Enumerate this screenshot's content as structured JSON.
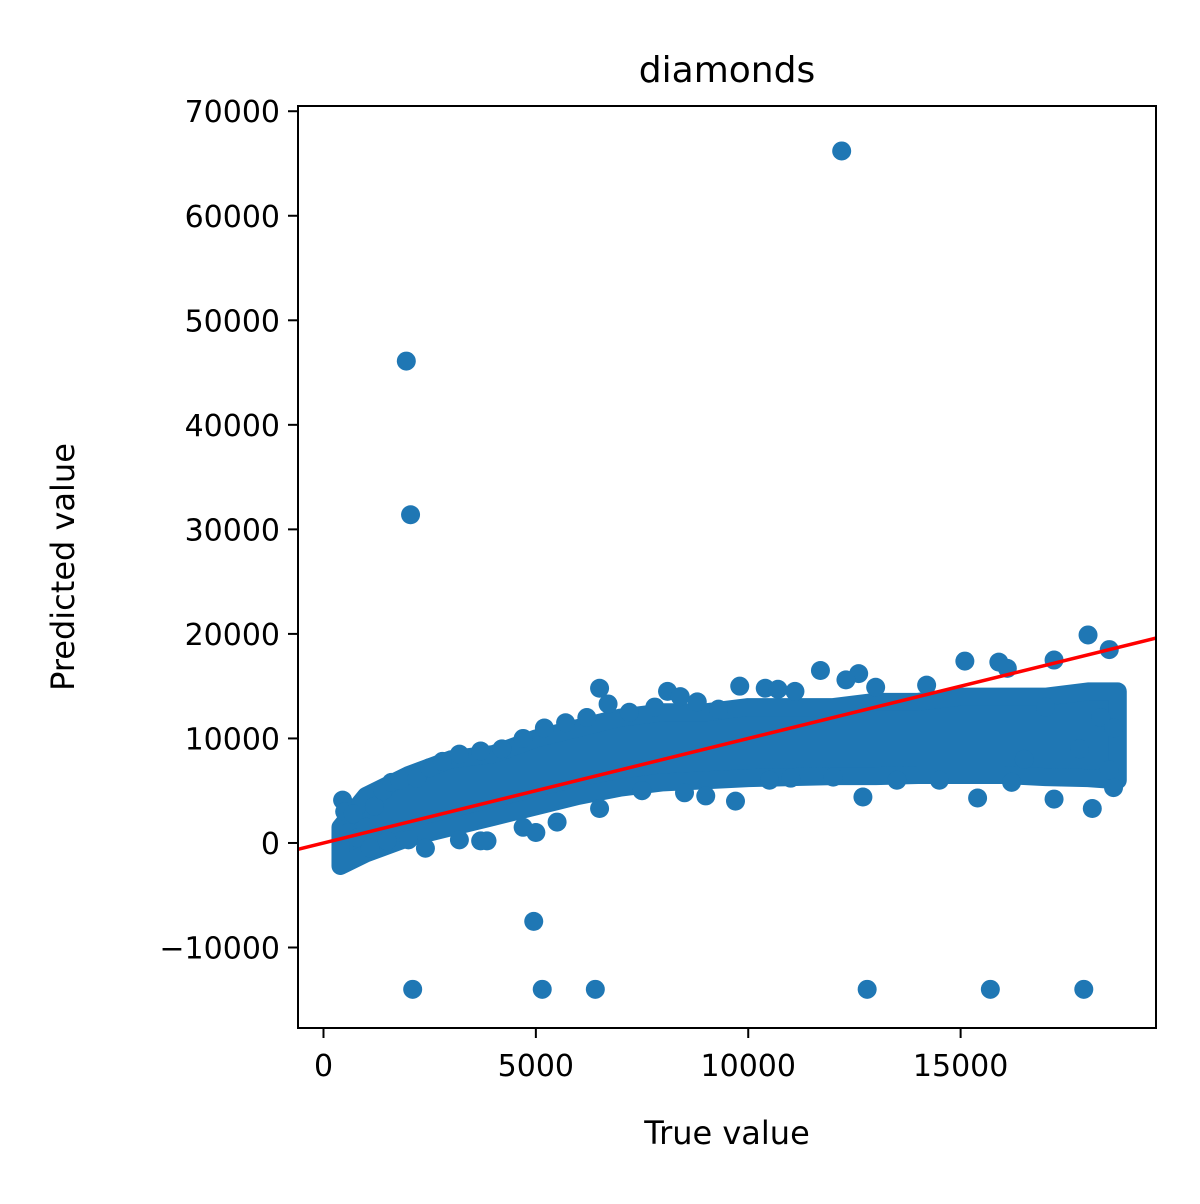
{
  "chart_data": {
    "type": "scatter",
    "title": "diamonds",
    "xlabel": "True value",
    "ylabel": "Predicted value",
    "xlim": [
      -600,
      19600
    ],
    "ylim": [
      -17700,
      70500
    ],
    "xticks": [
      0,
      5000,
      10000,
      15000
    ],
    "xtick_labels": [
      "0",
      "5000",
      "10000",
      "15000"
    ],
    "yticks": [
      -10000,
      0,
      10000,
      20000,
      30000,
      40000,
      50000,
      60000,
      70000
    ],
    "ytick_labels": [
      "−10000",
      "0",
      "10000",
      "20000",
      "30000",
      "40000",
      "50000",
      "60000",
      "70000"
    ],
    "grid": false,
    "colors": {
      "points": "#1f77b4",
      "reference_line": "#ff0000"
    },
    "reference_line": {
      "description": "y = x",
      "points": [
        [
          -600,
          -600
        ],
        [
          19600,
          19600
        ]
      ]
    },
    "bulk_band": {
      "x": [
        400,
        1000,
        2000,
        3000,
        4000,
        5000,
        6000,
        7000,
        8000,
        9000,
        10000,
        11000,
        12000,
        13000,
        14000,
        15000,
        16000,
        17000,
        18000,
        18700
      ],
      "y_low": [
        -2200,
        -1000,
        500,
        1500,
        2500,
        3500,
        4500,
        5300,
        5800,
        6000,
        6200,
        6300,
        6400,
        6400,
        6500,
        6500,
        6500,
        6300,
        6200,
        6000
      ],
      "y_high": [
        1500,
        4500,
        6500,
        8000,
        8500,
        10000,
        11000,
        12000,
        12500,
        12500,
        13000,
        13000,
        13000,
        13500,
        13500,
        14000,
        14000,
        14000,
        14500,
        14500
      ]
    },
    "points": [
      [
        12200,
        66200
      ],
      [
        1950,
        46100
      ],
      [
        2050,
        31400
      ],
      [
        4950,
        -7500
      ],
      [
        2100,
        -14000
      ],
      [
        5150,
        -14000
      ],
      [
        6400,
        -14000
      ],
      [
        12800,
        -14000
      ],
      [
        15700,
        -14000
      ],
      [
        17900,
        -14000
      ],
      [
        18000,
        19900
      ],
      [
        17200,
        17500
      ],
      [
        18500,
        18500
      ],
      [
        15100,
        17400
      ],
      [
        15900,
        17300
      ],
      [
        16100,
        16700
      ],
      [
        11700,
        16500
      ],
      [
        12600,
        16200
      ],
      [
        12300,
        15600
      ],
      [
        14200,
        15100
      ],
      [
        13000,
        14900
      ],
      [
        9800,
        15000
      ],
      [
        10400,
        14800
      ],
      [
        10700,
        14700
      ],
      [
        11100,
        14500
      ],
      [
        8100,
        14500
      ],
      [
        8400,
        14000
      ],
      [
        8800,
        13500
      ],
      [
        6500,
        14800
      ],
      [
        6700,
        13300
      ],
      [
        9300,
        12800
      ],
      [
        450,
        4100
      ],
      [
        500,
        3000
      ],
      [
        700,
        2800
      ],
      [
        600,
        1000
      ],
      [
        800,
        500
      ],
      [
        1000,
        1500
      ],
      [
        1200,
        3500
      ],
      [
        1400,
        5000
      ],
      [
        1600,
        5800
      ],
      [
        1800,
        6000
      ],
      [
        2200,
        6200
      ],
      [
        2500,
        7200
      ],
      [
        2800,
        7800
      ],
      [
        3200,
        8500
      ],
      [
        3700,
        8800
      ],
      [
        4200,
        9000
      ],
      [
        4700,
        10000
      ],
      [
        5200,
        11000
      ],
      [
        5700,
        11500
      ],
      [
        6200,
        12000
      ],
      [
        7200,
        12500
      ],
      [
        7800,
        13000
      ],
      [
        1100,
        -500
      ],
      [
        1500,
        200
      ],
      [
        2000,
        300
      ],
      [
        2400,
        -500
      ],
      [
        3200,
        300
      ],
      [
        3700,
        200
      ],
      [
        3850,
        200
      ],
      [
        4700,
        1500
      ],
      [
        5000,
        1000
      ],
      [
        5500,
        2000
      ],
      [
        6500,
        3300
      ],
      [
        7500,
        5000
      ],
      [
        8500,
        4800
      ],
      [
        9000,
        4500
      ],
      [
        9700,
        4000
      ],
      [
        10500,
        6000
      ],
      [
        11000,
        6200
      ],
      [
        12000,
        6300
      ],
      [
        12700,
        4400
      ],
      [
        13500,
        6000
      ],
      [
        14500,
        6000
      ],
      [
        15400,
        4300
      ],
      [
        16200,
        5800
      ],
      [
        17200,
        4200
      ],
      [
        18100,
        3300
      ],
      [
        18600,
        5300
      ],
      [
        18500,
        7000
      ],
      [
        18300,
        12000
      ],
      [
        18600,
        11000
      ],
      [
        17800,
        9000
      ],
      [
        17000,
        13000
      ],
      [
        16500,
        8000
      ]
    ]
  }
}
